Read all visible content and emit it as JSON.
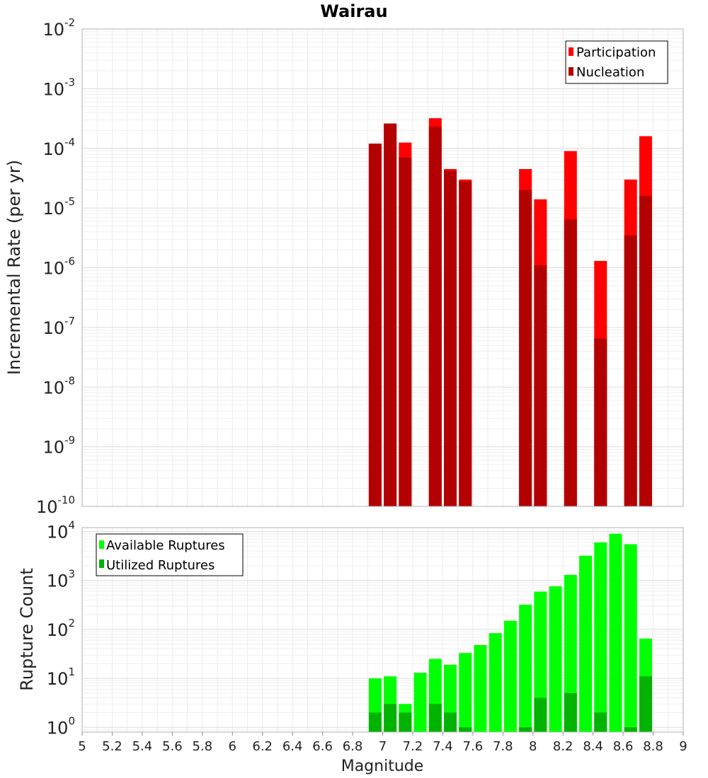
{
  "chart_data": [
    {
      "type": "bar",
      "panel": "top",
      "title": "Wairau",
      "ylabel": "Incremental Rate (per yr)",
      "yscale": "log",
      "ylim": [
        1e-10,
        0.01
      ],
      "xlim": [
        5,
        9
      ],
      "yticks": [
        {
          "base": "10",
          "exp": "-10"
        },
        {
          "base": "10",
          "exp": "-9"
        },
        {
          "base": "10",
          "exp": "-8"
        },
        {
          "base": "10",
          "exp": "-7"
        },
        {
          "base": "10",
          "exp": "-6"
        },
        {
          "base": "10",
          "exp": "-5"
        },
        {
          "base": "10",
          "exp": "-4"
        },
        {
          "base": "10",
          "exp": "-3"
        },
        {
          "base": "10",
          "exp": "-2"
        }
      ],
      "grid": true,
      "legend_position": "top-right",
      "x": [
        6.95,
        7.05,
        7.15,
        7.35,
        7.45,
        7.55,
        7.95,
        8.05,
        8.25,
        8.45,
        8.65,
        8.75
      ],
      "series": [
        {
          "name": "Participation",
          "color": "#ff0000",
          "values": [
            0.00012,
            0.00026,
            0.000125,
            0.00032,
            4.5e-05,
            3e-05,
            4.5e-05,
            1.4e-05,
            9e-05,
            1.3e-06,
            3e-05,
            0.00016
          ]
        },
        {
          "name": "Nucleation",
          "color": "#b30000",
          "values": [
            0.00012,
            0.00026,
            7e-05,
            0.00023,
            4.2e-05,
            2.8e-05,
            2e-05,
            1.1e-06,
            6.5e-06,
            6.5e-08,
            3.5e-06,
            1.6e-05
          ]
        }
      ]
    },
    {
      "type": "bar",
      "panel": "bottom",
      "ylabel": "Rupture Count",
      "xlabel": "Magnitude",
      "yscale": "log",
      "ylim": [
        0.8,
        12000.0
      ],
      "xlim": [
        5,
        9
      ],
      "yticks": [
        {
          "base": "10",
          "exp": "0"
        },
        {
          "base": "10",
          "exp": "1"
        },
        {
          "base": "10",
          "exp": "2"
        },
        {
          "base": "10",
          "exp": "3"
        },
        {
          "base": "10",
          "exp": "4"
        }
      ],
      "xticks": [
        "5",
        "5.2",
        "5.4",
        "5.6",
        "5.8",
        "6",
        "6.2",
        "6.4",
        "6.6",
        "6.8",
        "7",
        "7.2",
        "7.4",
        "7.6",
        "7.8",
        "8",
        "8.2",
        "8.4",
        "8.6",
        "8.8",
        "9"
      ],
      "grid": true,
      "legend_position": "top-left",
      "x": [
        6.95,
        7.05,
        7.15,
        7.25,
        7.35,
        7.45,
        7.55,
        7.65,
        7.75,
        7.85,
        7.95,
        8.05,
        8.15,
        8.25,
        8.35,
        8.45,
        8.55,
        8.65,
        8.75
      ],
      "series": [
        {
          "name": "Available Ruptures",
          "color": "#00ff00",
          "values": [
            10,
            11,
            3,
            13,
            25,
            19,
            33,
            48,
            84,
            150,
            320,
            590,
            760,
            1300,
            3200,
            6000,
            9000,
            5500,
            65
          ]
        },
        {
          "name": "Utilized Ruptures",
          "color": "#00b300",
          "values": [
            2,
            3,
            2,
            null,
            3,
            2,
            1,
            null,
            null,
            null,
            1,
            4,
            null,
            5,
            null,
            2,
            null,
            1,
            11
          ]
        }
      ]
    }
  ]
}
